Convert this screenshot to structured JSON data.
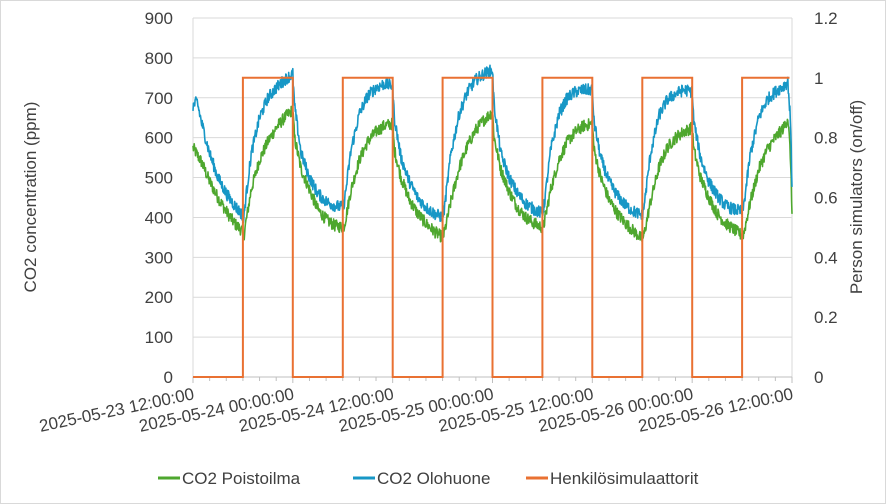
{
  "chart_data": {
    "type": "line",
    "title": "",
    "xlabel": "",
    "ylabel": "CO2 concentration (ppm)",
    "y2label": "Person simulators (on/off)",
    "ylim": [
      0,
      900
    ],
    "y2lim": [
      0,
      1.2
    ],
    "yticks": [
      "0",
      "100",
      "200",
      "300",
      "400",
      "500",
      "600",
      "700",
      "800",
      "900"
    ],
    "y2ticks": [
      "0",
      "0.2",
      "0.4",
      "0.6",
      "0.8",
      "1",
      "1.2"
    ],
    "xrange_hours": [
      0,
      72
    ],
    "xticks": [
      {
        "hour": 0,
        "label": "2025-05-23 12:00:00"
      },
      {
        "hour": 12,
        "label": "2025-05-24 00:00:00"
      },
      {
        "hour": 24,
        "label": "2025-05-24 12:00:00"
      },
      {
        "hour": 36,
        "label": "2025-05-25 00:00:00"
      },
      {
        "hour": 48,
        "label": "2025-05-25 12:00:00"
      },
      {
        "hour": 60,
        "label": "2025-05-26 00:00:00"
      },
      {
        "hour": 72,
        "label": "2025-05-26 12:00:00"
      }
    ],
    "grid": "horizontal",
    "legend_position": "bottom",
    "series": [
      {
        "name": "CO2 Poistoilma",
        "color": "#4ea72e",
        "axis": "left",
        "points": [
          [
            0,
            575
          ],
          [
            1,
            540
          ],
          [
            2,
            490
          ],
          [
            3,
            450
          ],
          [
            4,
            415
          ],
          [
            5,
            385
          ],
          [
            6,
            365
          ],
          [
            6.05,
            345
          ],
          [
            6.3,
            380
          ],
          [
            7,
            470
          ],
          [
            8,
            545
          ],
          [
            9,
            590
          ],
          [
            10,
            625
          ],
          [
            11,
            650
          ],
          [
            12,
            670
          ],
          [
            12.2,
            600
          ],
          [
            13,
            520
          ],
          [
            14,
            470
          ],
          [
            15,
            420
          ],
          [
            16,
            395
          ],
          [
            17,
            380
          ],
          [
            18,
            375
          ],
          [
            18.2,
            380
          ],
          [
            19,
            470
          ],
          [
            20,
            545
          ],
          [
            21,
            590
          ],
          [
            22,
            615
          ],
          [
            23,
            630
          ],
          [
            24,
            635
          ],
          [
            24.2,
            570
          ],
          [
            25,
            500
          ],
          [
            26,
            445
          ],
          [
            27,
            410
          ],
          [
            28,
            385
          ],
          [
            29,
            365
          ],
          [
            30,
            350
          ],
          [
            30.2,
            360
          ],
          [
            31,
            440
          ],
          [
            32,
            525
          ],
          [
            33,
            580
          ],
          [
            34,
            620
          ],
          [
            35,
            645
          ],
          [
            36,
            665
          ],
          [
            36.2,
            600
          ],
          [
            37,
            520
          ],
          [
            38,
            465
          ],
          [
            39,
            425
          ],
          [
            40,
            400
          ],
          [
            41,
            385
          ],
          [
            42,
            375
          ],
          [
            42.2,
            385
          ],
          [
            43,
            470
          ],
          [
            44,
            545
          ],
          [
            45,
            590
          ],
          [
            46,
            615
          ],
          [
            47,
            630
          ],
          [
            48,
            635
          ],
          [
            48.2,
            570
          ],
          [
            49,
            500
          ],
          [
            50,
            445
          ],
          [
            51,
            410
          ],
          [
            52,
            385
          ],
          [
            53,
            365
          ],
          [
            54,
            345
          ],
          [
            54.2,
            355
          ],
          [
            55,
            440
          ],
          [
            56,
            525
          ],
          [
            57,
            575
          ],
          [
            58,
            600
          ],
          [
            59,
            615
          ],
          [
            60,
            625
          ],
          [
            60.2,
            570
          ],
          [
            61,
            500
          ],
          [
            62,
            450
          ],
          [
            63,
            410
          ],
          [
            64,
            385
          ],
          [
            65,
            370
          ],
          [
            66,
            355
          ],
          [
            66.2,
            360
          ],
          [
            67,
            440
          ],
          [
            68,
            520
          ],
          [
            69,
            570
          ],
          [
            70,
            600
          ],
          [
            71,
            625
          ],
          [
            71.5,
            650
          ],
          [
            71.8,
            560
          ],
          [
            72,
            410
          ]
        ]
      },
      {
        "name": "CO2 Olohuone",
        "color": "#1797c6",
        "axis": "left",
        "points": [
          [
            0,
            680
          ],
          [
            0.5,
            690
          ],
          [
            1,
            640
          ],
          [
            2,
            560
          ],
          [
            3,
            500
          ],
          [
            4,
            460
          ],
          [
            5,
            430
          ],
          [
            6,
            405
          ],
          [
            6.05,
            385
          ],
          [
            6.3,
            440
          ],
          [
            7,
            560
          ],
          [
            8,
            650
          ],
          [
            9,
            700
          ],
          [
            10,
            725
          ],
          [
            11,
            745
          ],
          [
            12,
            760
          ],
          [
            12.2,
            680
          ],
          [
            13,
            560
          ],
          [
            14,
            500
          ],
          [
            15,
            460
          ],
          [
            16,
            440
          ],
          [
            17,
            430
          ],
          [
            18,
            425
          ],
          [
            18.2,
            440
          ],
          [
            19,
            570
          ],
          [
            20,
            660
          ],
          [
            21,
            705
          ],
          [
            22,
            725
          ],
          [
            23,
            735
          ],
          [
            24,
            730
          ],
          [
            24.2,
            650
          ],
          [
            25,
            550
          ],
          [
            26,
            490
          ],
          [
            27,
            450
          ],
          [
            28,
            425
          ],
          [
            29,
            410
          ],
          [
            30,
            400
          ],
          [
            30.2,
            420
          ],
          [
            31,
            560
          ],
          [
            32,
            660
          ],
          [
            33,
            715
          ],
          [
            34,
            745
          ],
          [
            35,
            760
          ],
          [
            36,
            770
          ],
          [
            36.2,
            680
          ],
          [
            37,
            560
          ],
          [
            38,
            500
          ],
          [
            39,
            460
          ],
          [
            40,
            435
          ],
          [
            41,
            420
          ],
          [
            42,
            410
          ],
          [
            42.2,
            430
          ],
          [
            43,
            570
          ],
          [
            44,
            660
          ],
          [
            45,
            700
          ],
          [
            46,
            715
          ],
          [
            47,
            720
          ],
          [
            48,
            720
          ],
          [
            48.2,
            640
          ],
          [
            49,
            550
          ],
          [
            50,
            490
          ],
          [
            51,
            455
          ],
          [
            52,
            430
          ],
          [
            53,
            415
          ],
          [
            54,
            405
          ],
          [
            54.2,
            425
          ],
          [
            55,
            560
          ],
          [
            56,
            655
          ],
          [
            57,
            695
          ],
          [
            58,
            710
          ],
          [
            59,
            720
          ],
          [
            60,
            715
          ],
          [
            60.2,
            640
          ],
          [
            61,
            550
          ],
          [
            62,
            490
          ],
          [
            63,
            455
          ],
          [
            64,
            430
          ],
          [
            65,
            420
          ],
          [
            66,
            415
          ],
          [
            66.2,
            430
          ],
          [
            67,
            560
          ],
          [
            68,
            650
          ],
          [
            69,
            695
          ],
          [
            70,
            715
          ],
          [
            71,
            730
          ],
          [
            71.5,
            740
          ],
          [
            71.8,
            650
          ],
          [
            72,
            480
          ]
        ]
      },
      {
        "name": "Henkilösimulaattorit",
        "color": "#e97132",
        "axis": "right",
        "points": [
          [
            0,
            0
          ],
          [
            6,
            0
          ],
          [
            6,
            1
          ],
          [
            12,
            1
          ],
          [
            12,
            0
          ],
          [
            18,
            0
          ],
          [
            18,
            1
          ],
          [
            24,
            1
          ],
          [
            24,
            0
          ],
          [
            30,
            0
          ],
          [
            30,
            1
          ],
          [
            36,
            1
          ],
          [
            36,
            0
          ],
          [
            42,
            0
          ],
          [
            42,
            1
          ],
          [
            48,
            1
          ],
          [
            48,
            0
          ],
          [
            54,
            0
          ],
          [
            54,
            1
          ],
          [
            60,
            1
          ],
          [
            60,
            0
          ],
          [
            66,
            0
          ],
          [
            66,
            1
          ],
          [
            71.7,
            1
          ]
        ]
      }
    ]
  }
}
